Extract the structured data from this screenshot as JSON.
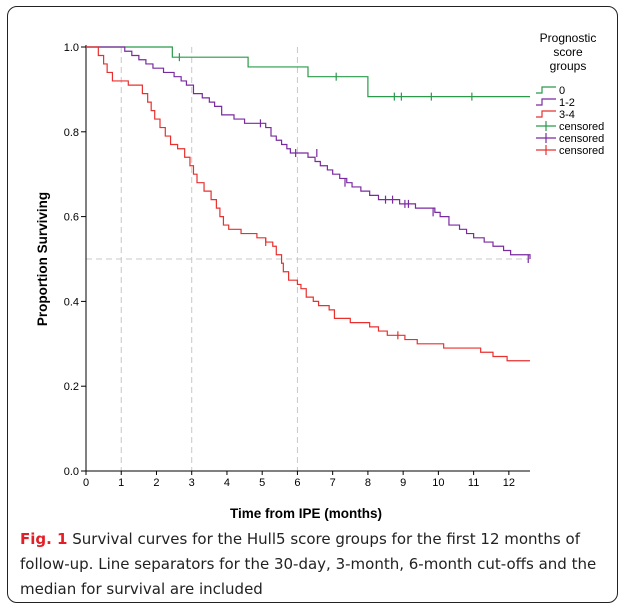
{
  "caption": {
    "label": "Fig. 1",
    "text": " Survival curves for the Hull5 score groups for the first 12 months of follow-up. Line separators for the 30-day, 3-month, 6-month cut-offs and the median for survival are included"
  },
  "chart_data": {
    "type": "line",
    "subtype": "kaplan-meier step",
    "xlabel": "Time from IPE (months)",
    "ylabel": "Proportion Surviving",
    "xlim": [
      0,
      12.6
    ],
    "ylim": [
      0,
      1.0
    ],
    "x_ticks": [
      0,
      1,
      2,
      3,
      4,
      5,
      6,
      7,
      8,
      9,
      10,
      11,
      12
    ],
    "y_ticks": [
      0.0,
      0.2,
      0.4,
      0.6,
      0.8,
      1.0
    ],
    "y_tick_labels": [
      "0.0",
      "0.2",
      "0.4",
      "0.6",
      "0.8",
      "1.0"
    ],
    "reference_lines": {
      "x": [
        1,
        3,
        6
      ],
      "y": [
        0.5
      ],
      "style": "dashed",
      "color": "#c8c8c8"
    },
    "legend": {
      "title_lines": [
        "Prognostic",
        "score",
        "groups"
      ],
      "placement": "right",
      "entries": [
        {
          "label": "0",
          "kind": "step",
          "color": "#2a9a4a"
        },
        {
          "label": "1-2",
          "kind": "step",
          "color": "#7a2aa0"
        },
        {
          "label": "3-4",
          "kind": "step",
          "color": "#e8302e"
        },
        {
          "label": "censored",
          "kind": "censor",
          "color": "#2a9a4a"
        },
        {
          "label": "censored",
          "kind": "censor",
          "color": "#7a2aa0"
        },
        {
          "label": "censored",
          "kind": "censor",
          "color": "#e8302e"
        }
      ]
    },
    "series": [
      {
        "name": "0",
        "color": "#2a9a4a",
        "steps": [
          [
            0,
            1.0
          ],
          [
            2.45,
            0.976
          ],
          [
            4.6,
            0.953
          ],
          [
            6.3,
            0.93
          ],
          [
            8.0,
            0.883
          ],
          [
            12.6,
            0.883
          ]
        ],
        "censored": [
          [
            2.65,
            0.976
          ],
          [
            7.1,
            0.93
          ],
          [
            8.75,
            0.883
          ],
          [
            8.95,
            0.883
          ],
          [
            9.8,
            0.883
          ],
          [
            10.95,
            0.883
          ]
        ]
      },
      {
        "name": "1-2",
        "color": "#7a2aa0",
        "steps": [
          [
            0,
            1.0
          ],
          [
            1.1,
            0.99
          ],
          [
            1.3,
            0.98
          ],
          [
            1.5,
            0.97
          ],
          [
            1.7,
            0.96
          ],
          [
            1.9,
            0.95
          ],
          [
            2.2,
            0.94
          ],
          [
            2.5,
            0.93
          ],
          [
            2.7,
            0.92
          ],
          [
            2.85,
            0.91
          ],
          [
            3.05,
            0.89
          ],
          [
            3.3,
            0.88
          ],
          [
            3.5,
            0.87
          ],
          [
            3.65,
            0.86
          ],
          [
            3.85,
            0.84
          ],
          [
            4.2,
            0.83
          ],
          [
            4.5,
            0.82
          ],
          [
            5.1,
            0.81
          ],
          [
            5.25,
            0.79
          ],
          [
            5.4,
            0.78
          ],
          [
            5.55,
            0.77
          ],
          [
            5.7,
            0.76
          ],
          [
            5.8,
            0.75
          ],
          [
            6.3,
            0.74
          ],
          [
            6.5,
            0.73
          ],
          [
            6.65,
            0.72
          ],
          [
            6.85,
            0.71
          ],
          [
            7.0,
            0.7
          ],
          [
            7.2,
            0.69
          ],
          [
            7.4,
            0.68
          ],
          [
            7.55,
            0.67
          ],
          [
            7.8,
            0.66
          ],
          [
            8.05,
            0.65
          ],
          [
            8.3,
            0.64
          ],
          [
            8.9,
            0.63
          ],
          [
            9.35,
            0.62
          ],
          [
            9.9,
            0.61
          ],
          [
            10.05,
            0.6
          ],
          [
            10.3,
            0.58
          ],
          [
            10.6,
            0.57
          ],
          [
            10.8,
            0.56
          ],
          [
            11.0,
            0.55
          ],
          [
            11.3,
            0.54
          ],
          [
            11.55,
            0.53
          ],
          [
            11.85,
            0.52
          ],
          [
            12.05,
            0.51
          ],
          [
            12.6,
            0.5
          ]
        ],
        "censored": [
          [
            4.95,
            0.82
          ],
          [
            5.95,
            0.75
          ],
          [
            6.55,
            0.75
          ],
          [
            7.35,
            0.68
          ],
          [
            8.5,
            0.64
          ],
          [
            8.7,
            0.64
          ],
          [
            9.05,
            0.63
          ],
          [
            9.15,
            0.63
          ],
          [
            9.85,
            0.61
          ],
          [
            12.55,
            0.5
          ]
        ]
      },
      {
        "name": "3-4",
        "color": "#e8302e",
        "steps": [
          [
            0,
            1.0
          ],
          [
            0.35,
            0.98
          ],
          [
            0.5,
            0.96
          ],
          [
            0.6,
            0.94
          ],
          [
            0.75,
            0.92
          ],
          [
            1.2,
            0.91
          ],
          [
            1.6,
            0.89
          ],
          [
            1.75,
            0.87
          ],
          [
            1.85,
            0.85
          ],
          [
            1.95,
            0.83
          ],
          [
            2.1,
            0.81
          ],
          [
            2.25,
            0.79
          ],
          [
            2.4,
            0.77
          ],
          [
            2.6,
            0.76
          ],
          [
            2.8,
            0.74
          ],
          [
            2.95,
            0.72
          ],
          [
            3.05,
            0.7
          ],
          [
            3.15,
            0.68
          ],
          [
            3.35,
            0.66
          ],
          [
            3.55,
            0.64
          ],
          [
            3.7,
            0.62
          ],
          [
            3.8,
            0.6
          ],
          [
            3.9,
            0.58
          ],
          [
            4.05,
            0.57
          ],
          [
            4.4,
            0.56
          ],
          [
            4.85,
            0.55
          ],
          [
            5.1,
            0.54
          ],
          [
            5.3,
            0.53
          ],
          [
            5.4,
            0.51
          ],
          [
            5.55,
            0.49
          ],
          [
            5.6,
            0.47
          ],
          [
            5.75,
            0.45
          ],
          [
            6.0,
            0.44
          ],
          [
            6.1,
            0.43
          ],
          [
            6.25,
            0.41
          ],
          [
            6.45,
            0.4
          ],
          [
            6.6,
            0.39
          ],
          [
            6.9,
            0.38
          ],
          [
            7.05,
            0.36
          ],
          [
            7.5,
            0.35
          ],
          [
            8.05,
            0.34
          ],
          [
            8.3,
            0.33
          ],
          [
            8.55,
            0.32
          ],
          [
            9.05,
            0.31
          ],
          [
            9.4,
            0.3
          ],
          [
            10.15,
            0.29
          ],
          [
            11.2,
            0.28
          ],
          [
            11.55,
            0.27
          ],
          [
            11.95,
            0.26
          ],
          [
            12.6,
            0.26
          ]
        ],
        "censored": [
          [
            5.1,
            0.54
          ],
          [
            8.85,
            0.32
          ]
        ]
      }
    ]
  }
}
